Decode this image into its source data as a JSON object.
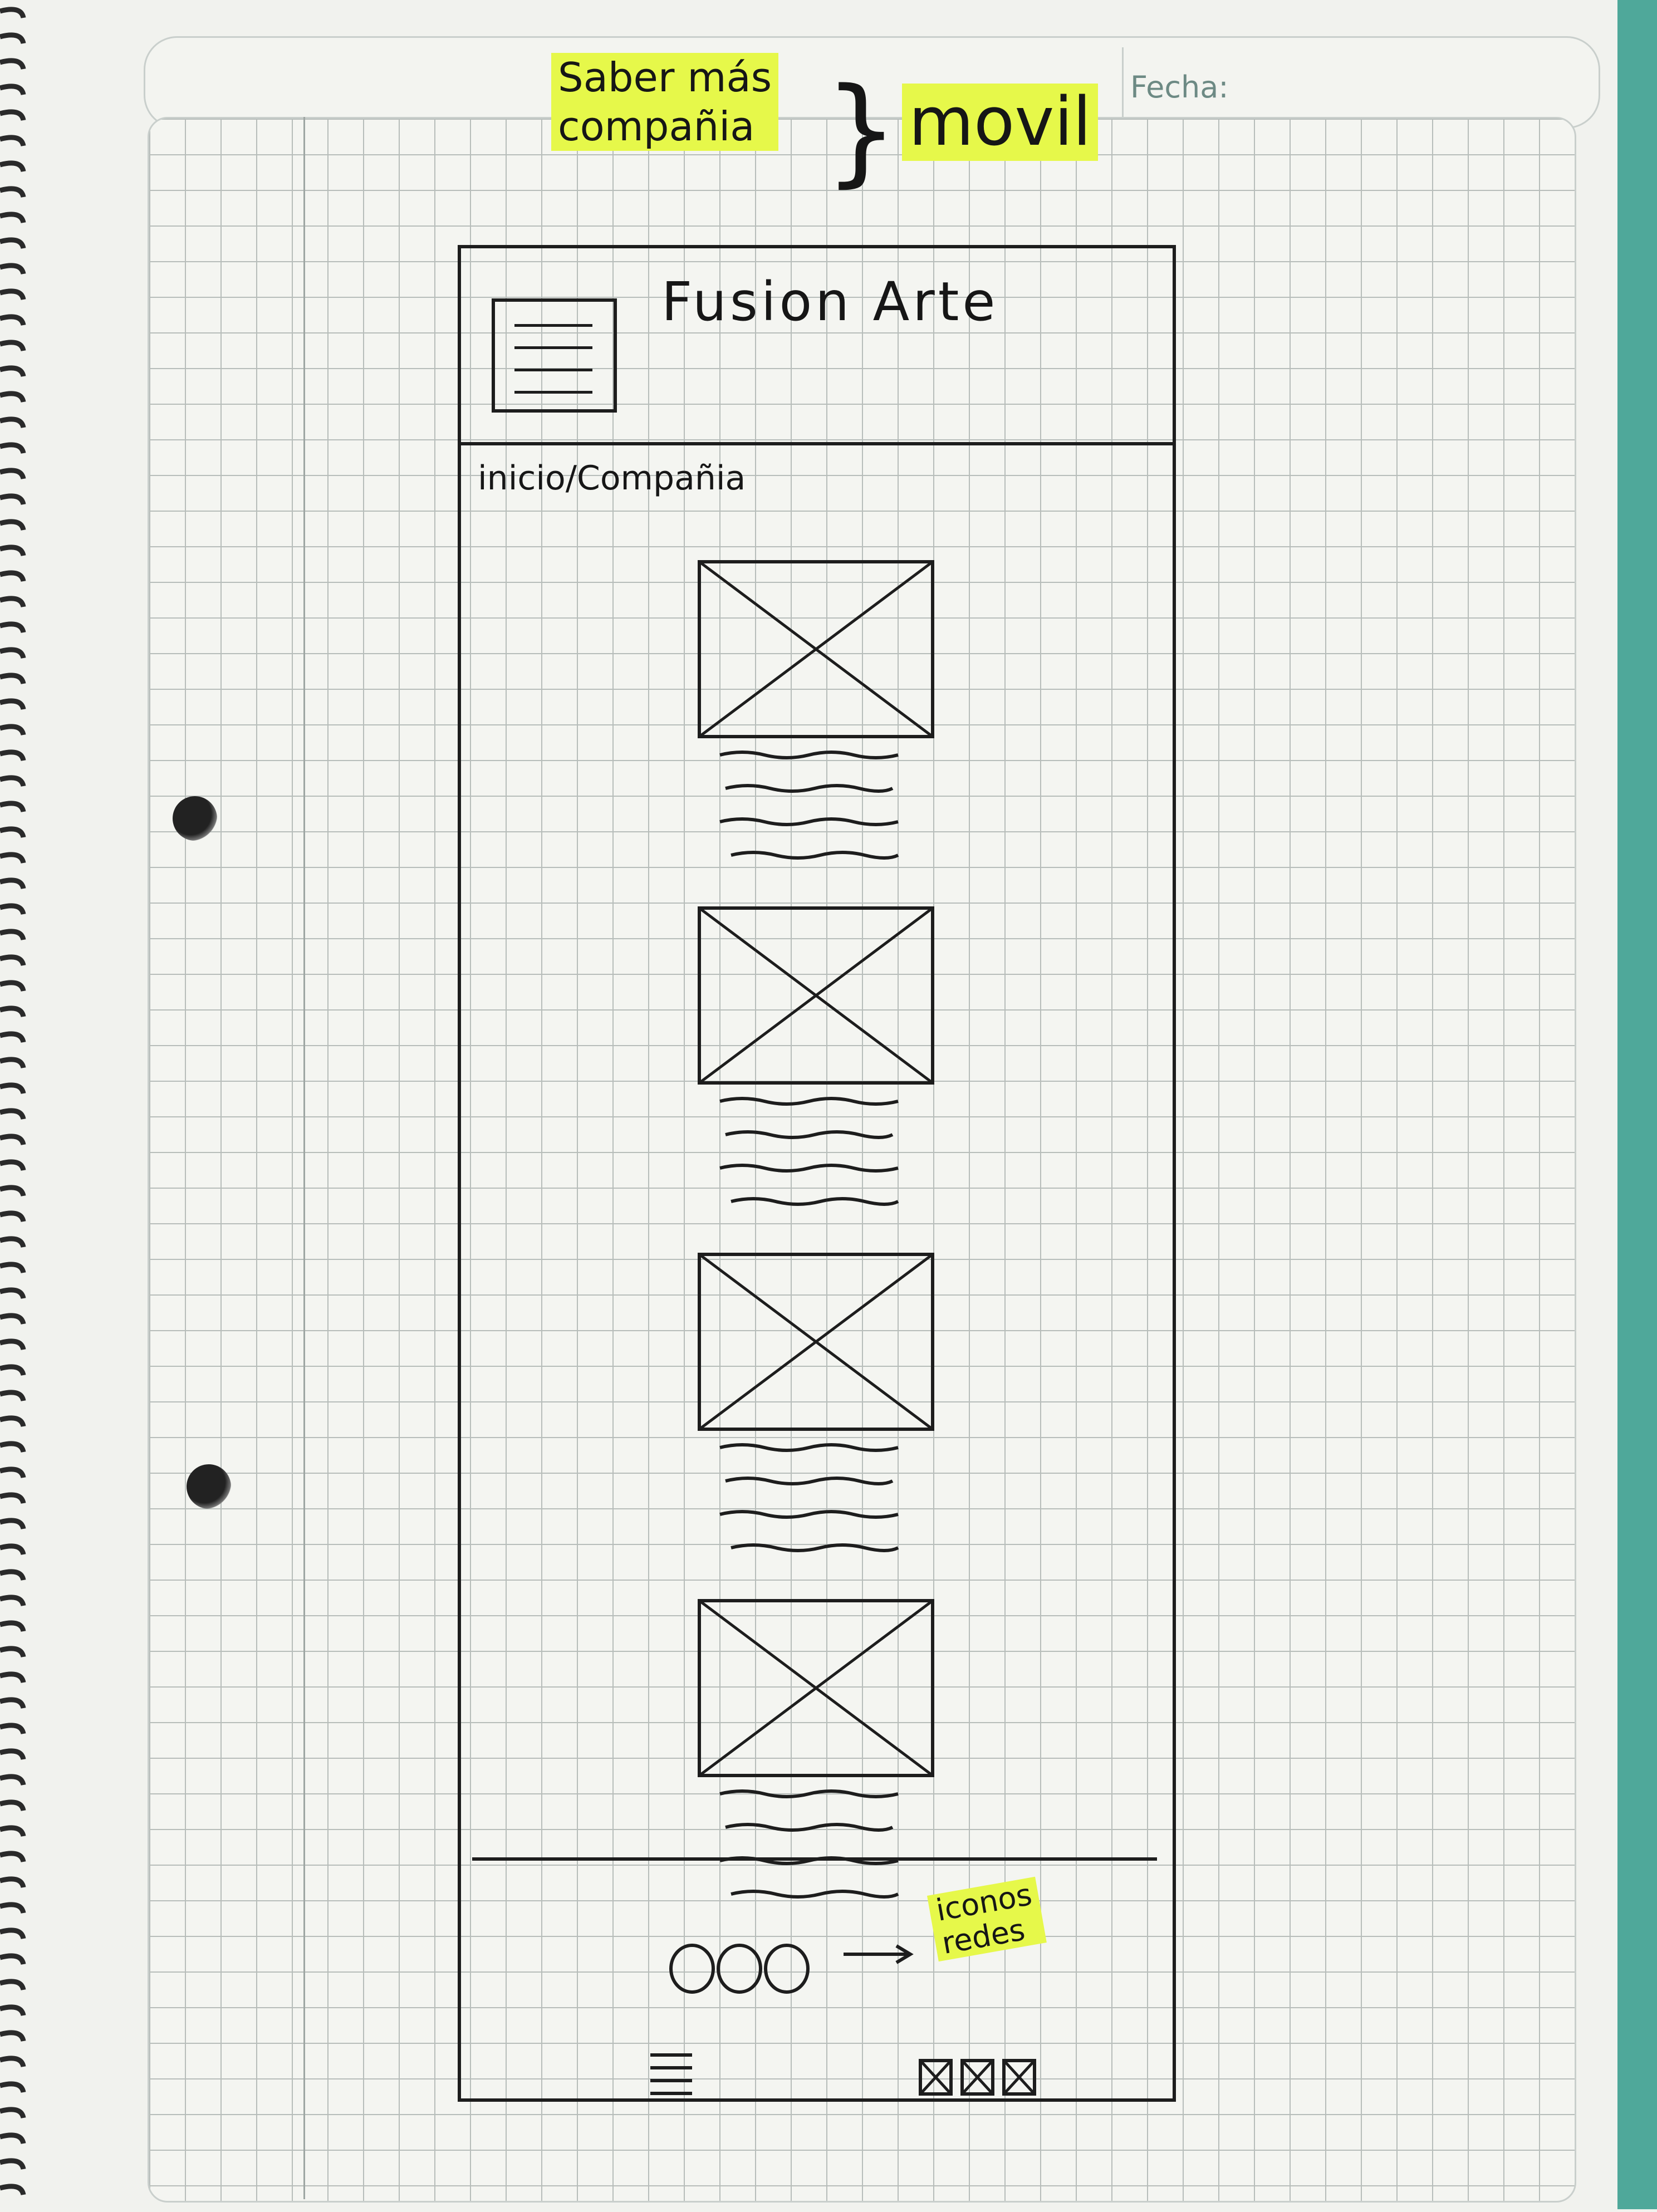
{
  "header": {
    "date_label": "Fecha:",
    "note_line1": "Saber más",
    "note_line2": "compañia",
    "note_device": "movil"
  },
  "wireframe": {
    "app_title": "Fusion Arte",
    "breadcrumb": "inicio/Compañia",
    "card_count": 4,
    "footer_note_line1": "iconos",
    "footer_note_line2": "redes"
  },
  "colors": {
    "highlighter": "#e6f84a",
    "ink": "#1d1d1d",
    "cover": "#4fa89a"
  },
  "icons": [
    "menu-icon",
    "image-placeholder-icon",
    "circle-icon",
    "social-icon"
  ]
}
